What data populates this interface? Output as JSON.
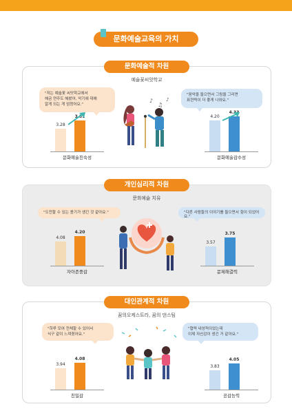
{
  "page_title": "문화예술교육의 가치",
  "sections": [
    {
      "heading": "문화예술적 차원",
      "subtitle": "예술꽃씨앗학교",
      "left_quote": "\"저는 예술꽃 씨앗학교에서\n해금 연주도 해봤어, 악기에 대해\n알게 되는 게 엄청어요.\"",
      "right_quote": "\"음악을 들으면서 그림을 그리면\n표현력이 더 좋게 나와요.\"",
      "left_chart": {
        "label": "문화예술친숙성",
        "before": "3.28",
        "after": "3.51"
      },
      "right_chart": {
        "label": "문화예술감수성",
        "before": "4.20",
        "after": "4.33"
      }
    },
    {
      "heading": "개인심리적 차원",
      "subtitle": "문화예술 치유",
      "left_quote": "\"도전할 수 있는 용기가 생긴 것 같아요.\"",
      "right_quote": "\"다른 사람들의 이야기를 들으면서 힘이 되었어요.\"",
      "left_chart": {
        "label": "자아존중감",
        "before": "4.08",
        "after": "4.20"
      },
      "right_chart": {
        "label": "문제해결력",
        "before": "3.57",
        "after": "3.75"
      }
    },
    {
      "heading": "대인관계적 차원",
      "subtitle": "꿈의오케스트라, 꿈의 댄스팀",
      "left_quote": "\"하루 모여 전체할 수 있어서\n식구 같이 느껴졌어요.\"",
      "right_quote": "\"협력 내성적이었는데\n이제 자신감이 생긴 거 같아요.\"",
      "left_chart": {
        "label": "친밀감",
        "before": "3.94",
        "after": "4.08"
      },
      "right_chart": {
        "label": "공감능력",
        "before": "3.83",
        "after": "4.05"
      }
    }
  ],
  "colors": {
    "orange": "#f08a1c",
    "orange_light": "#fbe3cc",
    "blue": "#3d8fd0",
    "blue_light": "#d4e5f6",
    "teal": "#5bc4c7"
  }
}
